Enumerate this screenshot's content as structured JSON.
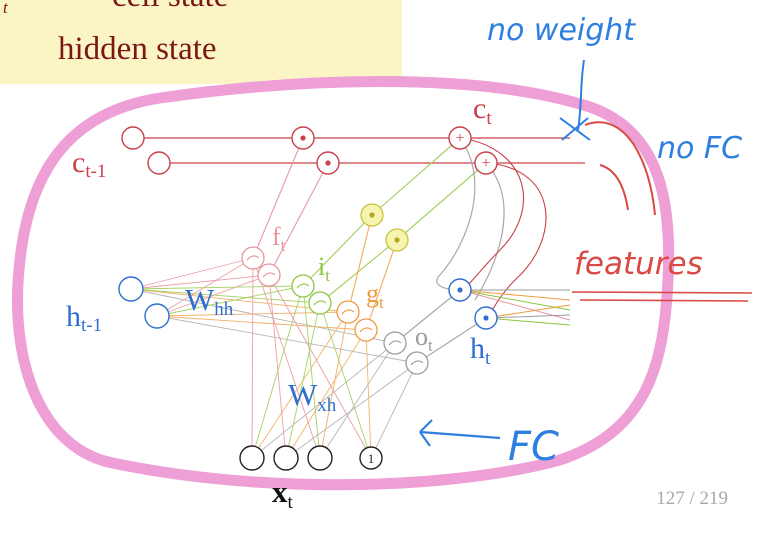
{
  "legend": {
    "mark": "t",
    "line1": "cell state",
    "line2": "hidden state"
  },
  "diagram": {
    "cell_prev": {
      "base": "c",
      "sub": "t-1"
    },
    "cell_next": {
      "base": "c",
      "sub": "t"
    },
    "hidden_prev": {
      "base": "h",
      "sub": "t-1"
    },
    "hidden_next": {
      "base": "h",
      "sub": "t"
    },
    "input": {
      "base": "x",
      "sub": "t"
    },
    "weight_hh": {
      "base": "W",
      "sub": "hh"
    },
    "weight_xh": {
      "base": "W",
      "sub": "xh"
    },
    "gate_f": {
      "base": "f",
      "sub": "t"
    },
    "gate_i": {
      "base": "i",
      "sub": "t"
    },
    "gate_g": {
      "base": "g",
      "sub": "t"
    },
    "gate_o": {
      "base": "o",
      "sub": "t"
    },
    "bias_unit": "1",
    "multiply_symbol": "⊙",
    "add_symbol": "+"
  },
  "annotations": {
    "no_weight": "no weight",
    "no_fc": "no FC",
    "features": "features",
    "fc": "FC"
  },
  "footer": {
    "page": "127 / 219"
  },
  "colors": {
    "cell": "#c9404a",
    "hidden": "#2e6fd0",
    "forget": "#e7969c",
    "input_gate": "#8cc63f",
    "candidate": "#f09a3e",
    "output": "#9b9b9b",
    "product_fill": "#eede5a",
    "annotation_blue": "#2f7fe0",
    "annotation_red": "#d84a43",
    "loop_pink": "#ee9fd6"
  }
}
